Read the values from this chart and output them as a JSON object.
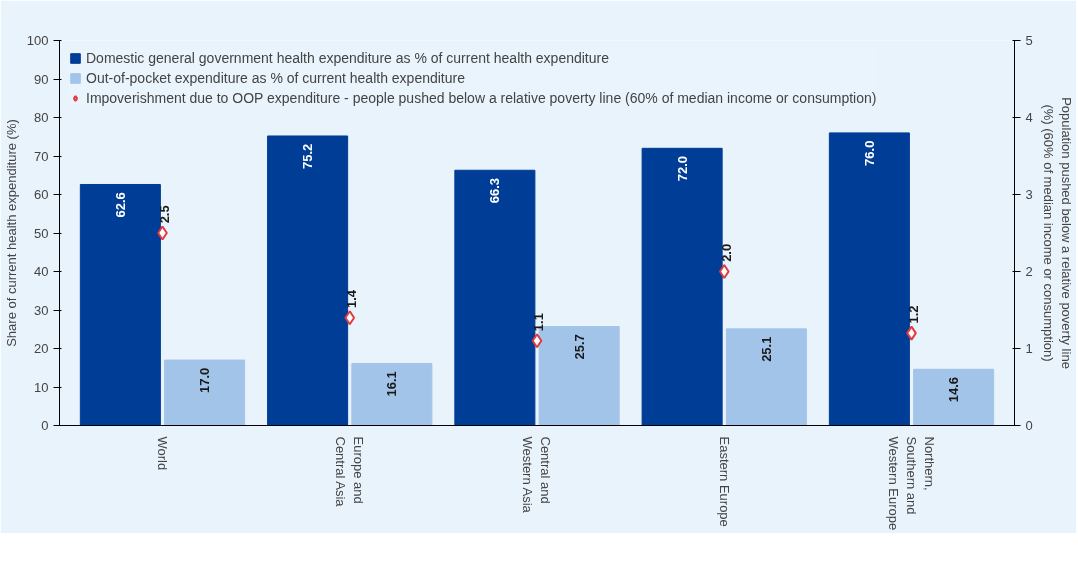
{
  "chart_data": {
    "type": "bar",
    "categories": [
      "World",
      "Europe and Central Asia",
      "Central and Western Asia",
      "Eastern Europe",
      "Northern, Southern and Western Europe"
    ],
    "series": [
      {
        "name": "Domestic general government health expenditure as % of current health expenditure",
        "color": "#003d96",
        "values": [
          62.6,
          75.2,
          66.3,
          72.0,
          76.0
        ],
        "value_labels": [
          "62.6",
          "75.2",
          "66.3",
          "72.0",
          "76.0"
        ]
      },
      {
        "name": "Out-of-pocket expenditure as % of current health expenditure",
        "color": "#a3c4e9",
        "values": [
          17.0,
          16.1,
          25.7,
          25.1,
          14.6
        ],
        "value_labels": [
          "17.0",
          "16.1",
          "25.7",
          "25.1",
          "14.6"
        ]
      },
      {
        "name": "Impoverishment due to OOP expenditure - people pushed below a relative poverty line (60% of median income or consumption)",
        "color": "#e0393e",
        "values": [
          2.5,
          1.4,
          1.1,
          2.0,
          1.2
        ],
        "value_labels": [
          "2.5",
          "1.4",
          "1.1",
          "2.0",
          "1.2"
        ],
        "type": "scatter",
        "axis": "y2",
        "marker": "diamond"
      }
    ],
    "ylabel": "Share of current health expenditure (%)",
    "y2label": "Population pushed below a relative poverty line (%) (60% of median income or consumption)",
    "ylim": [
      0,
      100
    ],
    "yticks": [
      0,
      10,
      20,
      30,
      40,
      50,
      60,
      70,
      80,
      90,
      100
    ],
    "y2lim": [
      0,
      5
    ],
    "y2ticks": [
      0,
      1,
      2,
      3,
      4,
      5
    ],
    "legend": "top",
    "grid": false
  }
}
